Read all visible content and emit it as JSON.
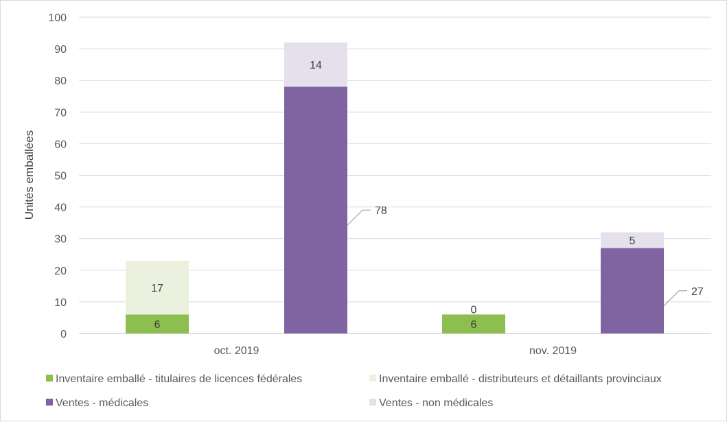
{
  "chart_data": {
    "type": "bar",
    "stacked": true,
    "title": "",
    "xlabel": "",
    "ylabel": "Unités emballées",
    "ylim": [
      0,
      100
    ],
    "y_ticks": [
      0,
      10,
      20,
      30,
      40,
      50,
      60,
      70,
      80,
      90,
      100
    ],
    "grid": true,
    "legend_position": "bottom",
    "groups": [
      {
        "label": "oct. 2019",
        "bars": [
          0,
          1
        ]
      },
      {
        "label": "nov. 2019",
        "bars": [
          2,
          3
        ]
      }
    ],
    "bars": [
      {
        "group": "oct. 2019",
        "segments": [
          {
            "series": "Inventaire emballé - titulaires de licences fédérales",
            "value": 6,
            "label": "6",
            "label_style": "inside"
          },
          {
            "series": "Inventaire emballé - distributeurs et détaillants provinciaux",
            "value": 17,
            "label": "17",
            "label_style": "inside"
          }
        ]
      },
      {
        "group": "oct. 2019",
        "segments": [
          {
            "series": "Ventes - médicales",
            "value": 78,
            "label": "78",
            "label_style": "callout"
          },
          {
            "series": "Ventes - non médicales",
            "value": 14,
            "label": "14",
            "label_style": "inside"
          }
        ]
      },
      {
        "group": "nov. 2019",
        "segments": [
          {
            "series": "Inventaire emballé - titulaires de licences fédérales",
            "value": 6,
            "label": "6",
            "label_style": "inside"
          },
          {
            "series": "Inventaire emballé - distributeurs et détaillants provinciaux",
            "value": 0,
            "label": "0",
            "label_style": "inside"
          }
        ]
      },
      {
        "group": "nov. 2019",
        "segments": [
          {
            "series": "Ventes - médicales",
            "value": 27,
            "label": "27",
            "label_style": "callout"
          },
          {
            "series": "Ventes - non médicales",
            "value": 5,
            "label": "5",
            "label_style": "inside"
          }
        ]
      }
    ],
    "series": [
      {
        "name": "Inventaire emballé - titulaires de licences fédérales",
        "color": "#8cbf4f"
      },
      {
        "name": "Inventaire emballé - distributeurs et détaillants provinciaux",
        "color": "#ebf1de"
      },
      {
        "name": "Ventes - médicales",
        "color": "#8064a2"
      },
      {
        "name": "Ventes - non médicales",
        "color": "#e5e0ec"
      }
    ],
    "colors": {
      "gridline": "#d9d9d9",
      "axis": "#bfbfbf",
      "callout_line": "#a6a6a6"
    }
  }
}
